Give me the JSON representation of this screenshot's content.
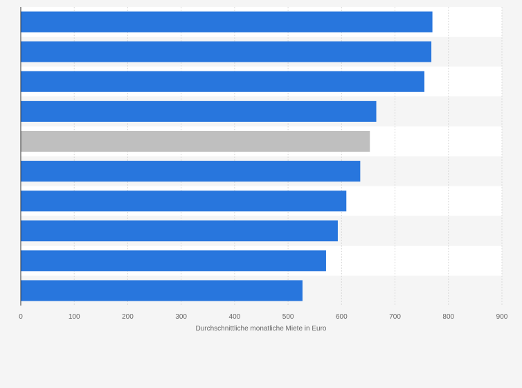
{
  "chart_data": {
    "type": "bar",
    "orientation": "horizontal",
    "values": [
      770,
      768,
      755,
      665,
      653,
      635,
      609,
      593,
      571,
      527
    ],
    "highlighted_index": 4,
    "xlabel": "Durchschnittliche monatliche Miete in Euro",
    "xlim": [
      0,
      900
    ],
    "xticks": [
      "0",
      "100",
      "200",
      "300",
      "400",
      "500",
      "600",
      "700",
      "800",
      "900"
    ],
    "grid": true,
    "colors": {
      "bar": "#2876dd",
      "highlight": "#bfbfbf",
      "band_light": "#ffffff",
      "band_dark": "#f5f5f5",
      "grid": "#d9d9d9",
      "axis": "#333333"
    }
  }
}
